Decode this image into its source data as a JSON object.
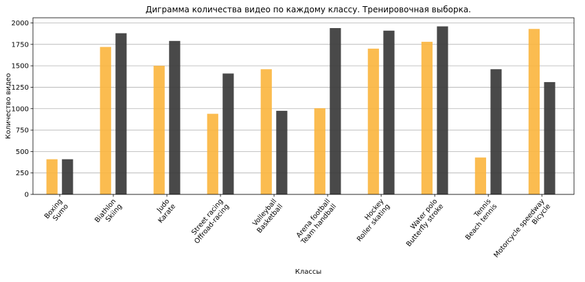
{
  "chart_data": {
    "type": "bar",
    "title": "Диграмма количества видео по каждому классу. Тренировочная выборка.",
    "xlabel": "Классы",
    "ylabel": "Количество видео",
    "ylim": [
      0,
      2060
    ],
    "yticks": [
      0,
      250,
      500,
      750,
      1000,
      1250,
      1500,
      1750,
      2000
    ],
    "grid": "horizontal",
    "series_colors": [
      "#FBB53D",
      "#3A3A3A"
    ],
    "groups": [
      {
        "labels": [
          "Boxing",
          "Sumo"
        ],
        "values": [
          410,
          410
        ]
      },
      {
        "labels": [
          "Biathlon",
          "Skiing"
        ],
        "values": [
          1720,
          1880
        ]
      },
      {
        "labels": [
          "Judo",
          "Karate"
        ],
        "values": [
          1500,
          1790
        ]
      },
      {
        "labels": [
          "Street racing",
          "Offroad-racing"
        ],
        "values": [
          940,
          1410
        ]
      },
      {
        "labels": [
          "Volleyball",
          "Basketball"
        ],
        "values": [
          1460,
          975
        ]
      },
      {
        "labels": [
          "Arena football",
          "Team handball"
        ],
        "values": [
          1005,
          1940
        ]
      },
      {
        "labels": [
          "Hockey",
          "Roller skating"
        ],
        "values": [
          1700,
          1910
        ]
      },
      {
        "labels": [
          "Water polo",
          "Butterfly stroke"
        ],
        "values": [
          1780,
          1960
        ]
      },
      {
        "labels": [
          "Tennis",
          "Beach tennis"
        ],
        "values": [
          430,
          1460
        ]
      },
      {
        "labels": [
          "Motorcycle speedway",
          "Bicycle"
        ],
        "values": [
          1930,
          1310
        ]
      }
    ]
  }
}
